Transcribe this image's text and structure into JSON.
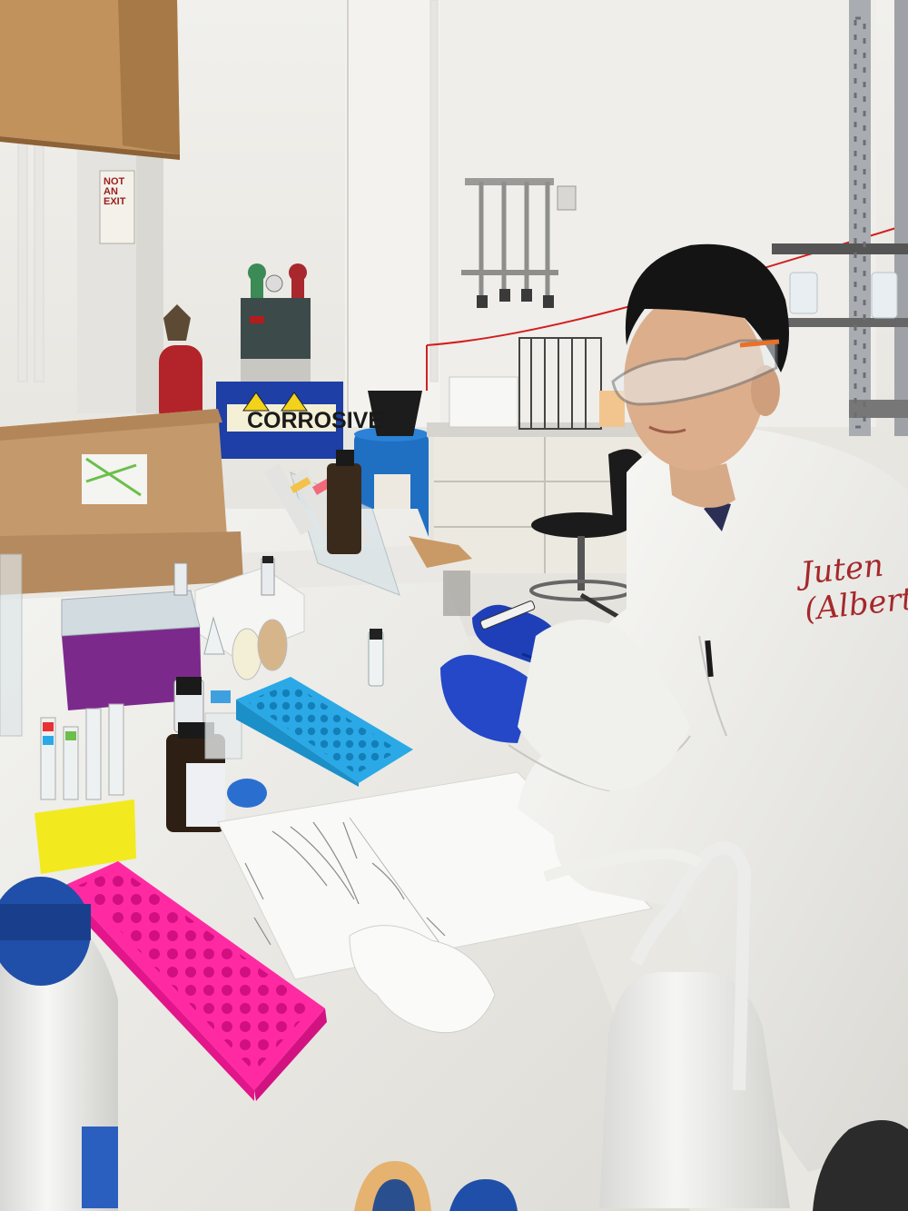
{
  "scene": {
    "colors": {
      "wall": "#ecebe7",
      "bench": "#eeeeea",
      "cabinet_wood": "#b98a57",
      "cardboard": "#c49a6c",
      "lab_coat": "#f3f3f0",
      "glove": "#1f3fb8",
      "blue_rack": "#2aa9e6",
      "pink_rack": "#ff2aa2",
      "yellow_rack": "#f2ea1f",
      "purple_box": "#7b2a8c",
      "blue_drum": "#1f6fc2",
      "blue_sign": "#1d3fa6"
    },
    "signs": {
      "corrosive": "CORROSIVE",
      "exit_sign": "NOT AN EXIT"
    },
    "coat_writing": "Juten\n(Albert"
  }
}
